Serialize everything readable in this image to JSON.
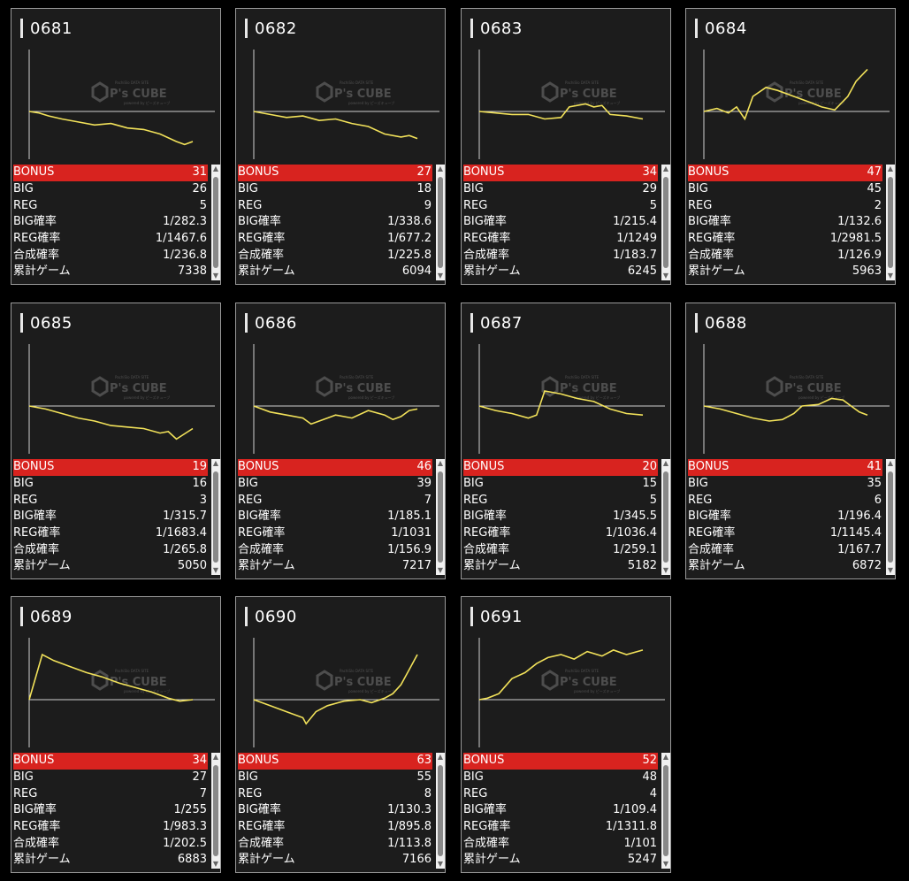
{
  "colors": {
    "line": "#f2e25a",
    "bonus_bg": "#d8231f",
    "panel": "#1c1c1c",
    "axis": "#cfcfcf"
  },
  "watermark": {
    "brand": "P's CUBE",
    "top": "PachiSlo DATA SITE",
    "sub": "powered by ピーズキューブ"
  },
  "labels": [
    "BONUS",
    "BIG",
    "REG",
    "BIG確率",
    "REG確率",
    "合成確率",
    "累計ゲーム"
  ],
  "scroll_icons": {
    "up": "scroll-up-arrow-icon",
    "down": "scroll-down-arrow-icon"
  },
  "machines": [
    {
      "id": "0681",
      "values": [
        "31",
        "26",
        "5",
        "1/282.3",
        "1/1467.6",
        "1/236.8",
        "7338"
      ],
      "graph": [
        [
          0,
          0
        ],
        [
          0.06,
          -1
        ],
        [
          0.12,
          -3
        ],
        [
          0.2,
          -5
        ],
        [
          0.3,
          -7
        ],
        [
          0.4,
          -9
        ],
        [
          0.5,
          -8
        ],
        [
          0.6,
          -11
        ],
        [
          0.7,
          -12
        ],
        [
          0.8,
          -15
        ],
        [
          0.9,
          -20
        ],
        [
          0.95,
          -22
        ],
        [
          1,
          -20
        ]
      ]
    },
    {
      "id": "0682",
      "values": [
        "27",
        "18",
        "9",
        "1/338.6",
        "1/677.2",
        "1/225.8",
        "6094"
      ],
      "graph": [
        [
          0,
          0
        ],
        [
          0.1,
          -2
        ],
        [
          0.2,
          -4
        ],
        [
          0.3,
          -3
        ],
        [
          0.4,
          -6
        ],
        [
          0.5,
          -5
        ],
        [
          0.6,
          -8
        ],
        [
          0.7,
          -10
        ],
        [
          0.8,
          -15
        ],
        [
          0.9,
          -17
        ],
        [
          0.95,
          -16
        ],
        [
          1,
          -18
        ]
      ]
    },
    {
      "id": "0683",
      "values": [
        "34",
        "29",
        "5",
        "1/215.4",
        "1/1249",
        "1/183.7",
        "6245"
      ],
      "graph": [
        [
          0,
          0
        ],
        [
          0.1,
          -1
        ],
        [
          0.2,
          -2
        ],
        [
          0.3,
          -2
        ],
        [
          0.4,
          -5
        ],
        [
          0.5,
          -4
        ],
        [
          0.55,
          3
        ],
        [
          0.65,
          5
        ],
        [
          0.7,
          3
        ],
        [
          0.75,
          4
        ],
        [
          0.8,
          -2
        ],
        [
          0.9,
          -3
        ],
        [
          1,
          -5
        ]
      ]
    },
    {
      "id": "0684",
      "values": [
        "47",
        "45",
        "2",
        "1/132.6",
        "1/2981.5",
        "1/126.9",
        "5963"
      ],
      "graph": [
        [
          0,
          0
        ],
        [
          0.08,
          2
        ],
        [
          0.15,
          -1
        ],
        [
          0.2,
          3
        ],
        [
          0.25,
          -5
        ],
        [
          0.3,
          10
        ],
        [
          0.38,
          16
        ],
        [
          0.45,
          14
        ],
        [
          0.55,
          10
        ],
        [
          0.65,
          6
        ],
        [
          0.72,
          3
        ],
        [
          0.8,
          1
        ],
        [
          0.88,
          10
        ],
        [
          0.93,
          20
        ],
        [
          1,
          28
        ]
      ]
    },
    {
      "id": "0685",
      "values": [
        "19",
        "16",
        "3",
        "1/315.7",
        "1/1683.4",
        "1/265.8",
        "5050"
      ],
      "graph": [
        [
          0,
          0
        ],
        [
          0.1,
          -2
        ],
        [
          0.2,
          -5
        ],
        [
          0.3,
          -8
        ],
        [
          0.4,
          -10
        ],
        [
          0.5,
          -13
        ],
        [
          0.6,
          -14
        ],
        [
          0.7,
          -15
        ],
        [
          0.8,
          -18
        ],
        [
          0.85,
          -17
        ],
        [
          0.9,
          -22
        ],
        [
          1,
          -15
        ]
      ]
    },
    {
      "id": "0686",
      "values": [
        "46",
        "39",
        "7",
        "1/185.1",
        "1/1031",
        "1/156.9",
        "7217"
      ],
      "graph": [
        [
          0,
          0
        ],
        [
          0.1,
          -4
        ],
        [
          0.2,
          -6
        ],
        [
          0.3,
          -8
        ],
        [
          0.35,
          -12
        ],
        [
          0.45,
          -8
        ],
        [
          0.5,
          -6
        ],
        [
          0.6,
          -8
        ],
        [
          0.7,
          -3
        ],
        [
          0.8,
          -6
        ],
        [
          0.85,
          -9
        ],
        [
          0.9,
          -7
        ],
        [
          0.95,
          -3
        ],
        [
          1,
          -2
        ]
      ]
    },
    {
      "id": "0687",
      "values": [
        "20",
        "15",
        "5",
        "1/345.5",
        "1/1036.4",
        "1/259.1",
        "5182"
      ],
      "graph": [
        [
          0,
          0
        ],
        [
          0.1,
          -3
        ],
        [
          0.2,
          -5
        ],
        [
          0.3,
          -8
        ],
        [
          0.35,
          -6
        ],
        [
          0.4,
          10
        ],
        [
          0.5,
          8
        ],
        [
          0.6,
          5
        ],
        [
          0.7,
          3
        ],
        [
          0.8,
          -2
        ],
        [
          0.9,
          -5
        ],
        [
          1,
          -6
        ]
      ]
    },
    {
      "id": "0688",
      "values": [
        "41",
        "35",
        "6",
        "1/196.4",
        "1/1145.4",
        "1/167.7",
        "6872"
      ],
      "graph": [
        [
          0,
          0
        ],
        [
          0.1,
          -2
        ],
        [
          0.2,
          -5
        ],
        [
          0.3,
          -8
        ],
        [
          0.4,
          -10
        ],
        [
          0.48,
          -9
        ],
        [
          0.55,
          -5
        ],
        [
          0.6,
          0
        ],
        [
          0.7,
          1
        ],
        [
          0.78,
          5
        ],
        [
          0.85,
          4
        ],
        [
          0.9,
          0
        ],
        [
          0.95,
          -4
        ],
        [
          1,
          -6
        ]
      ]
    },
    {
      "id": "0689",
      "values": [
        "34",
        "27",
        "7",
        "1/255",
        "1/983.3",
        "1/202.5",
        "6883"
      ],
      "graph": [
        [
          0,
          0
        ],
        [
          0.08,
          30
        ],
        [
          0.15,
          26
        ],
        [
          0.25,
          22
        ],
        [
          0.35,
          18
        ],
        [
          0.45,
          15
        ],
        [
          0.55,
          11
        ],
        [
          0.65,
          8
        ],
        [
          0.75,
          5
        ],
        [
          0.85,
          1
        ],
        [
          0.92,
          -1
        ],
        [
          1,
          0
        ]
      ]
    },
    {
      "id": "0690",
      "values": [
        "63",
        "55",
        "8",
        "1/130.3",
        "1/895.8",
        "1/113.8",
        "7166"
      ],
      "graph": [
        [
          0,
          0
        ],
        [
          0.1,
          -4
        ],
        [
          0.2,
          -8
        ],
        [
          0.3,
          -12
        ],
        [
          0.32,
          -16
        ],
        [
          0.38,
          -8
        ],
        [
          0.45,
          -4
        ],
        [
          0.55,
          -1
        ],
        [
          0.65,
          0
        ],
        [
          0.72,
          -2
        ],
        [
          0.8,
          1
        ],
        [
          0.85,
          4
        ],
        [
          0.9,
          10
        ],
        [
          0.95,
          20
        ],
        [
          1,
          30
        ]
      ]
    },
    {
      "id": "0691",
      "values": [
        "52",
        "48",
        "4",
        "1/109.4",
        "1/1311.8",
        "1/101",
        "5247"
      ],
      "graph": [
        [
          0,
          0
        ],
        [
          0.05,
          1
        ],
        [
          0.12,
          4
        ],
        [
          0.2,
          14
        ],
        [
          0.28,
          18
        ],
        [
          0.35,
          24
        ],
        [
          0.42,
          28
        ],
        [
          0.5,
          30
        ],
        [
          0.58,
          27
        ],
        [
          0.66,
          32
        ],
        [
          0.75,
          29
        ],
        [
          0.82,
          33
        ],
        [
          0.9,
          30
        ],
        [
          1,
          33
        ]
      ]
    }
  ]
}
